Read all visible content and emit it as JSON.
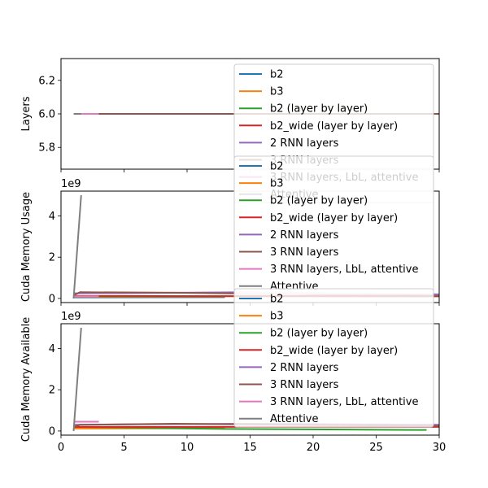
{
  "colors": {
    "b2": "#1f77b4",
    "b3": "#ff7f0e",
    "b2_lbl": "#2ca02c",
    "b2_wide_lbl": "#d62728",
    "rnn2": "#9467bd",
    "rnn3": "#8c564b",
    "rnn3_lbl_att": "#e377c2",
    "attentive": "#7f7f7f"
  },
  "chart_data": [
    {
      "type": "line",
      "ylabel": "Layers",
      "xlim": [
        0,
        30
      ],
      "ylim": [
        5.67,
        6.33
      ],
      "yticks": [
        5.8,
        6.0,
        6.2
      ],
      "ytick_labels": [
        "5.8",
        "6.0",
        "6.2"
      ],
      "xticks": [
        0,
        5,
        10,
        15,
        20,
        25,
        30
      ],
      "show_xtick_labels": false,
      "offset_label": "",
      "legend_entries": [
        "b2",
        "b3",
        "b2 (layer by layer)",
        "b2_wide (layer by layer)",
        "2 RNN layers",
        "3 RNN layers",
        "3 RNN layers, LbL, attentive",
        "Attentive"
      ],
      "series": [
        {
          "name": "b2",
          "color_key": "b2",
          "x": [
            1,
            30
          ],
          "y": [
            6,
            6
          ]
        },
        {
          "name": "b3",
          "color_key": "b3",
          "x": [
            1,
            30
          ],
          "y": [
            6,
            6
          ]
        },
        {
          "name": "b2 (layer by layer)",
          "color_key": "b2_lbl",
          "x": [
            1,
            30
          ],
          "y": [
            6,
            6
          ]
        },
        {
          "name": "b2_wide (layer by layer)",
          "color_key": "b2_wide_lbl",
          "x": [
            1,
            30
          ],
          "y": [
            6,
            6
          ]
        },
        {
          "name": "2 RNN layers",
          "color_key": "rnn2",
          "x": [
            1,
            30
          ],
          "y": [
            6,
            6
          ]
        },
        {
          "name": "3 RNN layers",
          "color_key": "rnn3",
          "x": [
            1,
            30
          ],
          "y": [
            6,
            6
          ]
        },
        {
          "name": "3 RNN layers, LbL, attentive",
          "color_key": "rnn3_lbl_att",
          "x": [
            1,
            3
          ],
          "y": [
            6,
            6
          ]
        },
        {
          "name": "Attentive",
          "color_key": "attentive",
          "x": [
            1,
            1.6
          ],
          "y": [
            6,
            6
          ]
        }
      ]
    },
    {
      "type": "line",
      "ylabel": "Cuda Memory Usage",
      "xlim": [
        0,
        30
      ],
      "ylim": [
        -0.2,
        5.2
      ],
      "yticks": [
        0,
        2,
        4
      ],
      "ytick_labels": [
        "0",
        "2",
        "4"
      ],
      "xticks": [
        0,
        5,
        10,
        15,
        20,
        25,
        30
      ],
      "show_xtick_labels": false,
      "offset_label": "1e9",
      "legend_entries": [
        "b2",
        "b3",
        "b2 (layer by layer)",
        "b2_wide (layer by layer)",
        "2 RNN layers",
        "3 RNN layers",
        "3 RNN layers, LbL, attentive",
        "Attentive"
      ],
      "series": [
        {
          "name": "b2",
          "color_key": "b2",
          "x": [
            1,
            13
          ],
          "y": [
            0.05,
            0.06
          ]
        },
        {
          "name": "b3",
          "color_key": "b3",
          "x": [
            1,
            13
          ],
          "y": [
            0.08,
            0.09
          ]
        },
        {
          "name": "b2 (layer by layer)",
          "color_key": "b2_lbl",
          "x": [
            1,
            30
          ],
          "y": [
            0.1,
            0.12
          ]
        },
        {
          "name": "b2_wide (layer by layer)",
          "color_key": "b2_wide_lbl",
          "x": [
            1,
            30
          ],
          "y": [
            0.12,
            0.1
          ]
        },
        {
          "name": "2 RNN layers",
          "color_key": "rnn2",
          "x": [
            1,
            5,
            15,
            30
          ],
          "y": [
            0.25,
            0.26,
            0.3,
            0.2
          ]
        },
        {
          "name": "3 RNN layers",
          "color_key": "rnn3",
          "x": [
            1,
            1.5,
            9,
            30
          ],
          "y": [
            0.15,
            0.3,
            0.28,
            0.12
          ]
        },
        {
          "name": "3 RNN layers, LbL, attentive",
          "color_key": "rnn3_lbl_att",
          "x": [
            1,
            3
          ],
          "y": [
            0.1,
            0.1
          ]
        },
        {
          "name": "Attentive",
          "color_key": "attentive",
          "x": [
            1,
            1.6
          ],
          "y": [
            0.0,
            5.0
          ]
        }
      ]
    },
    {
      "type": "line",
      "ylabel": "Cuda Memory Available",
      "xlim": [
        0,
        30
      ],
      "ylim": [
        -0.2,
        5.2
      ],
      "yticks": [
        0,
        2,
        4
      ],
      "ytick_labels": [
        "0",
        "2",
        "4"
      ],
      "xticks": [
        0,
        5,
        10,
        15,
        20,
        25,
        30
      ],
      "show_xtick_labels": true,
      "xtick_labels": [
        "0",
        "5",
        "10",
        "15",
        "20",
        "25",
        "30"
      ],
      "offset_label": "1e9",
      "legend_entries": [
        "b2",
        "b3",
        "b2 (layer by layer)",
        "b2_wide (layer by layer)",
        "2 RNN layers",
        "3 RNN layers",
        "3 RNN layers, LbL, attentive",
        "Attentive"
      ],
      "series": [
        {
          "name": "b2",
          "color_key": "b2",
          "x": [
            1,
            13
          ],
          "y": [
            0.15,
            0.18
          ]
        },
        {
          "name": "b3",
          "color_key": "b3",
          "x": [
            1,
            13
          ],
          "y": [
            0.12,
            0.13
          ]
        },
        {
          "name": "b2 (layer by layer)",
          "color_key": "b2_lbl",
          "x": [
            1,
            13,
            29
          ],
          "y": [
            0.2,
            0.1,
            0.05
          ]
        },
        {
          "name": "b2_wide (layer by layer)",
          "color_key": "b2_wide_lbl",
          "x": [
            1,
            30
          ],
          "y": [
            0.2,
            0.2
          ]
        },
        {
          "name": "2 RNN layers",
          "color_key": "rnn2",
          "x": [
            1,
            5,
            15,
            30
          ],
          "y": [
            0.3,
            0.32,
            0.35,
            0.3
          ]
        },
        {
          "name": "3 RNN layers",
          "color_key": "rnn3",
          "x": [
            1,
            1.5,
            9,
            30
          ],
          "y": [
            0.2,
            0.3,
            0.35,
            0.25
          ]
        },
        {
          "name": "3 RNN layers, LbL, attentive",
          "color_key": "rnn3_lbl_att",
          "x": [
            1,
            3
          ],
          "y": [
            0.45,
            0.45
          ]
        },
        {
          "name": "Attentive",
          "color_key": "attentive",
          "x": [
            1,
            1.6
          ],
          "y": [
            0.0,
            5.0
          ]
        }
      ]
    }
  ]
}
